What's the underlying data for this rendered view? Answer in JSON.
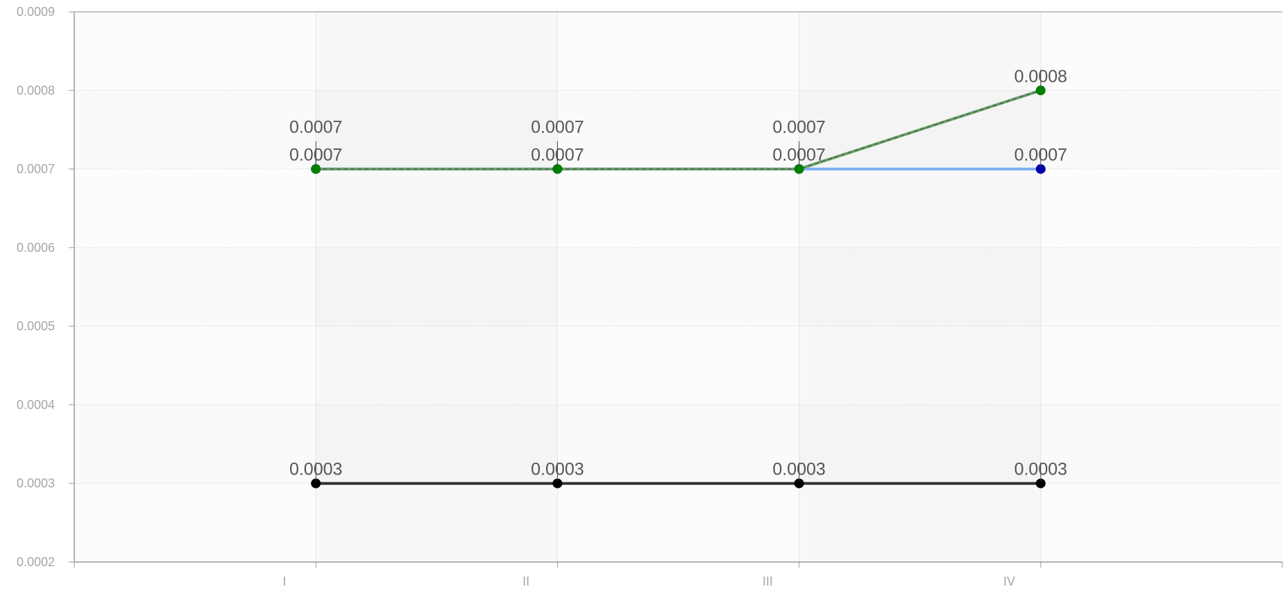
{
  "chart_data": {
    "type": "line",
    "title": "",
    "xlabel": "",
    "ylabel": "",
    "categories": [
      "I",
      "II",
      "III",
      "IV"
    ],
    "ylim": [
      0.0002,
      0.0009
    ],
    "yticks": [
      "0.0002",
      "0.0003",
      "0.0004",
      "0.0005",
      "0.0006",
      "0.0007",
      "0.0008",
      "0.0009"
    ],
    "grid": true,
    "legend": "none",
    "series": [
      {
        "values": [
          0.0007,
          0.0007,
          0.0007,
          0.0007
        ],
        "labels": [
          "0.0007",
          "0.0007",
          "0.0007",
          "0.0007"
        ],
        "line_color": "#7aaef0",
        "marker_color": "#0000a8",
        "dashed": false
      },
      {
        "values": [
          0.0007,
          0.0007,
          0.0007,
          0.0008
        ],
        "labels": [
          "0.0007",
          "0.0007",
          "0.0007",
          "0.0008"
        ],
        "line_color": "#6e9e6e",
        "marker_color": "#008000",
        "dashed": true
      },
      {
        "values": [
          0.0003,
          0.0003,
          0.0003,
          0.0003
        ],
        "labels": [
          "0.0003",
          "0.0003",
          "0.0003",
          "0.0003"
        ],
        "line_color": "#333333",
        "marker_color": "#000000",
        "dashed": false
      }
    ]
  }
}
